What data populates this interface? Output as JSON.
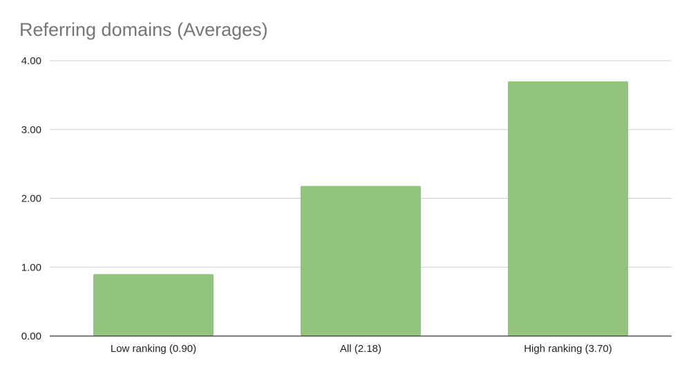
{
  "chart_data": {
    "type": "bar",
    "title": "Referring domains (Averages)",
    "categories": [
      "Low ranking (0.90)",
      "All (2.18)",
      "High ranking (3.70)"
    ],
    "values": [
      0.9,
      2.18,
      3.7
    ],
    "ylim": [
      0,
      4
    ],
    "yticks": [
      "0.00",
      "1.00",
      "2.00",
      "3.00",
      "4.00"
    ],
    "xlabel": "",
    "ylabel": "",
    "grid": true,
    "bar_color": "#93c47d"
  }
}
